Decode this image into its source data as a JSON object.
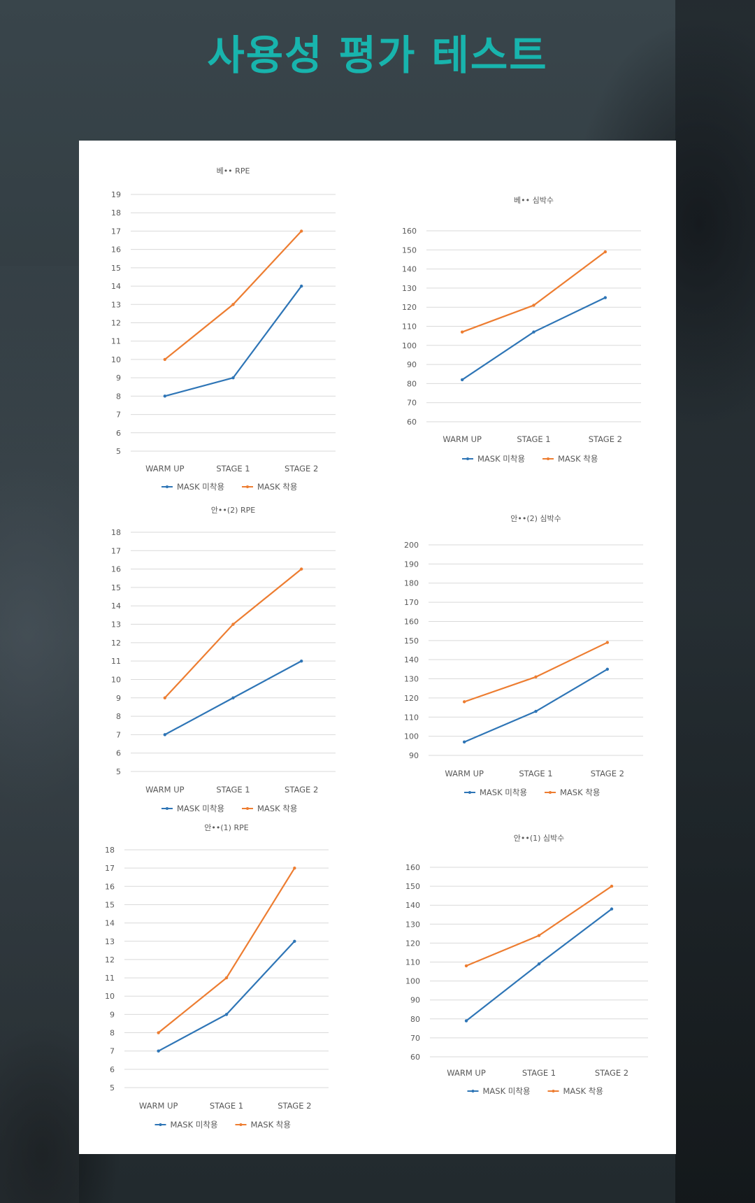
{
  "page": {
    "title": "사용성 평가 테스트"
  },
  "colors": {
    "title": "#18b4ad",
    "series_no_mask": "#2e75b6",
    "series_mask": "#ed7d31"
  },
  "chart_data": [
    {
      "type": "line",
      "title": "베•• RPE",
      "categories": [
        "WARM UP",
        "STAGE 1",
        "STAGE 2"
      ],
      "ylim": [
        5,
        19
      ],
      "step": 1,
      "grid": true,
      "legend": "bottom",
      "series": [
        {
          "name": "MASK 미착용",
          "values": [
            8,
            9,
            14
          ]
        },
        {
          "name": "MASK 착용",
          "values": [
            10,
            13,
            17
          ]
        }
      ]
    },
    {
      "type": "line",
      "title": "베•• 심박수",
      "categories": [
        "WARM UP",
        "STAGE 1",
        "STAGE 2"
      ],
      "ylim": [
        60,
        160
      ],
      "step": 10,
      "grid": true,
      "legend": "bottom",
      "series": [
        {
          "name": "MASK 미착용",
          "values": [
            82,
            107,
            125
          ]
        },
        {
          "name": "MASK 착용",
          "values": [
            107,
            121,
            149
          ]
        }
      ]
    },
    {
      "type": "line",
      "title": "안••(2) RPE",
      "categories": [
        "WARM UP",
        "STAGE 1",
        "STAGE 2"
      ],
      "ylim": [
        5,
        18
      ],
      "step": 1,
      "grid": true,
      "legend": "bottom",
      "series": [
        {
          "name": "MASK 미착용",
          "values": [
            7,
            9,
            11
          ]
        },
        {
          "name": "MASK 착용",
          "values": [
            9,
            13,
            16
          ]
        }
      ]
    },
    {
      "type": "line",
      "title": "안••(2) 심박수",
      "categories": [
        "WARM UP",
        "STAGE 1",
        "STAGE 2"
      ],
      "ylim": [
        90,
        200
      ],
      "step": 10,
      "grid": true,
      "legend": "bottom",
      "series": [
        {
          "name": "MASK 미착용",
          "values": [
            97,
            113,
            135
          ]
        },
        {
          "name": "MASK 착용",
          "values": [
            118,
            131,
            149
          ]
        }
      ]
    },
    {
      "type": "line",
      "title": "안••(1) RPE",
      "categories": [
        "WARM UP",
        "STAGE 1",
        "STAGE 2"
      ],
      "ylim": [
        5,
        18
      ],
      "step": 1,
      "grid": true,
      "legend": "bottom",
      "series": [
        {
          "name": "MASK 미착용",
          "values": [
            7,
            9,
            13
          ]
        },
        {
          "name": "MASK 착용",
          "values": [
            8,
            11,
            17
          ]
        }
      ]
    },
    {
      "type": "line",
      "title": "안••(1) 심박수",
      "categories": [
        "WARM UP",
        "STAGE 1",
        "STAGE 2"
      ],
      "ylim": [
        60,
        160
      ],
      "step": 10,
      "grid": true,
      "legend": "bottom",
      "series": [
        {
          "name": "MASK 미착용",
          "values": [
            79,
            109,
            138
          ]
        },
        {
          "name": "MASK 착용",
          "values": [
            108,
            124,
            150
          ]
        }
      ]
    }
  ]
}
